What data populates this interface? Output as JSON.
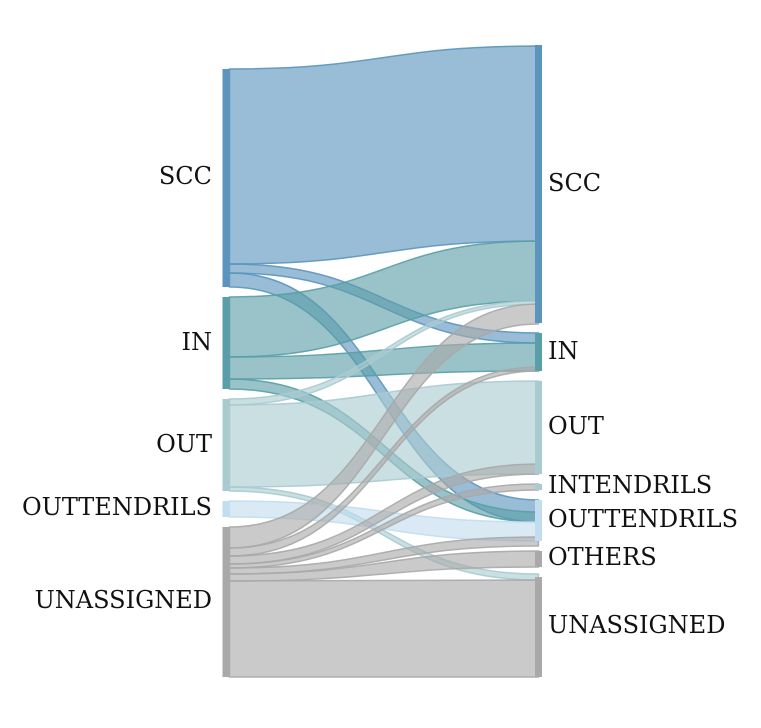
{
  "colors": {
    "scc": "#5b95bd",
    "in": "#5a9ea7",
    "out": "#a9cbd0",
    "outtendrils": "#c2ddef",
    "unassigned": "#a9a9a9"
  },
  "left_nodes": [
    {
      "id": "scc",
      "label": "SCC",
      "color_key": "scc"
    },
    {
      "id": "in",
      "label": "IN",
      "color_key": "in"
    },
    {
      "id": "out",
      "label": "OUT",
      "color_key": "out"
    },
    {
      "id": "outtendrils",
      "label": "OUTTENDRILS",
      "color_key": "outtendrils"
    },
    {
      "id": "unassigned",
      "label": "UNASSIGNED",
      "color_key": "unassigned"
    }
  ],
  "right_nodes": [
    {
      "id": "scc",
      "label": "SCC",
      "color_key": "scc"
    },
    {
      "id": "in",
      "label": "IN",
      "color_key": "in"
    },
    {
      "id": "out",
      "label": "OUT",
      "color_key": "out"
    },
    {
      "id": "intendrils",
      "label": "INTENDRILS",
      "color_key": "out"
    },
    {
      "id": "outtendrils",
      "label": "OUTTENDRILS",
      "color_key": "outtendrils"
    },
    {
      "id": "others",
      "label": "OTHERS",
      "color_key": "unassigned"
    },
    {
      "id": "unassigned",
      "label": "UNASSIGNED",
      "color_key": "unassigned"
    }
  ],
  "flows": [
    {
      "from": "scc",
      "to": "scc",
      "color_key": "scc"
    },
    {
      "from": "scc",
      "to": "in",
      "color_key": "scc"
    },
    {
      "from": "scc",
      "to": "outtendrils",
      "color_key": "scc"
    },
    {
      "from": "in",
      "to": "scc",
      "color_key": "in"
    },
    {
      "from": "in",
      "to": "in",
      "color_key": "in"
    },
    {
      "from": "in",
      "to": "outtendrils",
      "color_key": "in"
    },
    {
      "from": "out",
      "to": "scc",
      "color_key": "out"
    },
    {
      "from": "out",
      "to": "out",
      "color_key": "out"
    },
    {
      "from": "out",
      "to": "unassigned",
      "color_key": "out"
    },
    {
      "from": "outtendrils",
      "to": "outtendrils",
      "color_key": "outtendrils"
    },
    {
      "from": "unassigned",
      "to": "scc",
      "color_key": "unassigned"
    },
    {
      "from": "unassigned",
      "to": "in",
      "color_key": "unassigned"
    },
    {
      "from": "unassigned",
      "to": "out",
      "color_key": "unassigned"
    },
    {
      "from": "unassigned",
      "to": "intendrils",
      "color_key": "unassigned"
    },
    {
      "from": "unassigned",
      "to": "others",
      "color_key": "unassigned"
    },
    {
      "from": "unassigned",
      "to": "others",
      "color_key": "unassigned"
    },
    {
      "from": "unassigned",
      "to": "unassigned",
      "color_key": "unassigned"
    }
  ]
}
